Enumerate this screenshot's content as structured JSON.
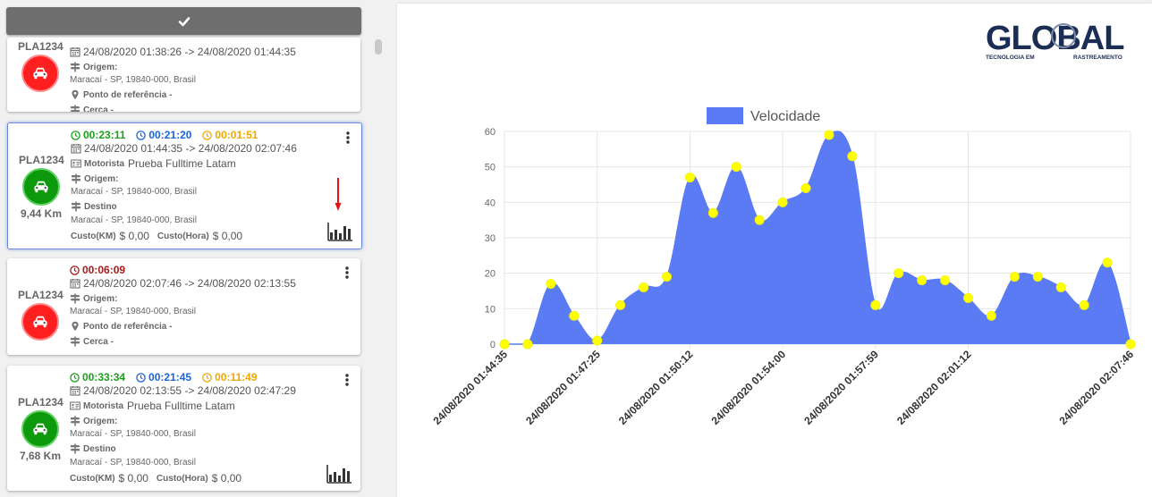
{
  "cards": [
    {
      "plate": "PLA1234",
      "status": "red",
      "timers": [],
      "datetime": "24/08/2020 01:38:26 -> 24/08/2020 01:44:35",
      "origin_label": "Origem:",
      "origin_address": "Maracaí - SP, 19840-000, Brasil",
      "ref_label": "Ponto de referência -",
      "fence_label": "Cerca -"
    },
    {
      "plate": "PLA1234",
      "status": "green",
      "distance": "9,44 Km",
      "timers": [
        {
          "value": "00:23:11",
          "color": "green"
        },
        {
          "value": "00:21:20",
          "color": "blue"
        },
        {
          "value": "00:01:51",
          "color": "orange"
        }
      ],
      "datetime": "24/08/2020 01:44:35 -> 24/08/2020 02:07:46",
      "driver_key": "Motorista",
      "driver_name": "Prueba Fulltime Latam",
      "origin_label": "Origem:",
      "origin_address": "Maracaí - SP, 19840-000, Brasil",
      "dest_label": "Destino",
      "dest_address": "Maracaí - SP, 19840-000, Brasil",
      "cost_km_key": "Custo(KM)",
      "cost_km": "$ 0,00",
      "cost_hour_key": "Custo(Hora)",
      "cost_hour": "$ 0,00"
    },
    {
      "plate": "PLA1234",
      "status": "red",
      "timers": [
        {
          "value": "00:06:09",
          "color": "dred"
        }
      ],
      "datetime": "24/08/2020 02:07:46 -> 24/08/2020 02:13:55",
      "origin_label": "Origem:",
      "origin_address": "Maracaí - SP, 19840-000, Brasil",
      "ref_label": "Ponto de referência -",
      "fence_label": "Cerca -"
    },
    {
      "plate": "PLA1234",
      "status": "green",
      "distance": "7,68 Km",
      "timers": [
        {
          "value": "00:33:34",
          "color": "green"
        },
        {
          "value": "00:21:45",
          "color": "blue"
        },
        {
          "value": "00:11:49",
          "color": "orange"
        }
      ],
      "datetime": "24/08/2020 02:13:55 -> 24/08/2020 02:47:29",
      "driver_key": "Motorista",
      "driver_name": "Prueba Fulltime Latam",
      "origin_label": "Origem:",
      "origin_address": "Maracaí - SP, 19840-000, Brasil",
      "dest_label": "Destino",
      "dest_address": "Maracaí - SP, 19840-000, Brasil",
      "cost_km_key": "Custo(KM)",
      "cost_km": "$ 0,00",
      "cost_hour_key": "Custo(Hora)",
      "cost_hour": "$ 0,00"
    }
  ],
  "logo": {
    "word": "GLOBAL",
    "tagline_left": "TECNOLOGIA EM",
    "tagline_right": "RASTREAMENTO"
  },
  "colors": {
    "fill": "#5b7bf5",
    "point": "#ffff00",
    "red": "#ff1f1f",
    "green": "#0c9a0c"
  },
  "chart_data": {
    "type": "area",
    "series": [
      {
        "name": "Velocidade",
        "values": [
          0,
          0,
          17,
          8,
          1,
          11,
          16,
          19,
          47,
          37,
          50,
          35,
          40,
          44,
          59,
          53,
          11,
          20,
          18,
          18,
          13,
          8,
          19,
          19,
          16,
          11,
          23,
          0
        ]
      }
    ],
    "ylim": [
      0,
      60
    ],
    "yticks": [
      0,
      10,
      20,
      30,
      40,
      50,
      60
    ],
    "xtick_labels": [
      "24/08/2020 01:44:35",
      "24/08/2020 01:47:25",
      "24/08/2020 01:50:12",
      "24/08/2020 01:54:00",
      "24/08/2020 01:57:59",
      "24/08/2020 02:01:12",
      "24/08/2020 02:07:46"
    ],
    "xtick_index": [
      0,
      4,
      8,
      12,
      16,
      20,
      27
    ],
    "legend_position": "top",
    "grid": true
  }
}
